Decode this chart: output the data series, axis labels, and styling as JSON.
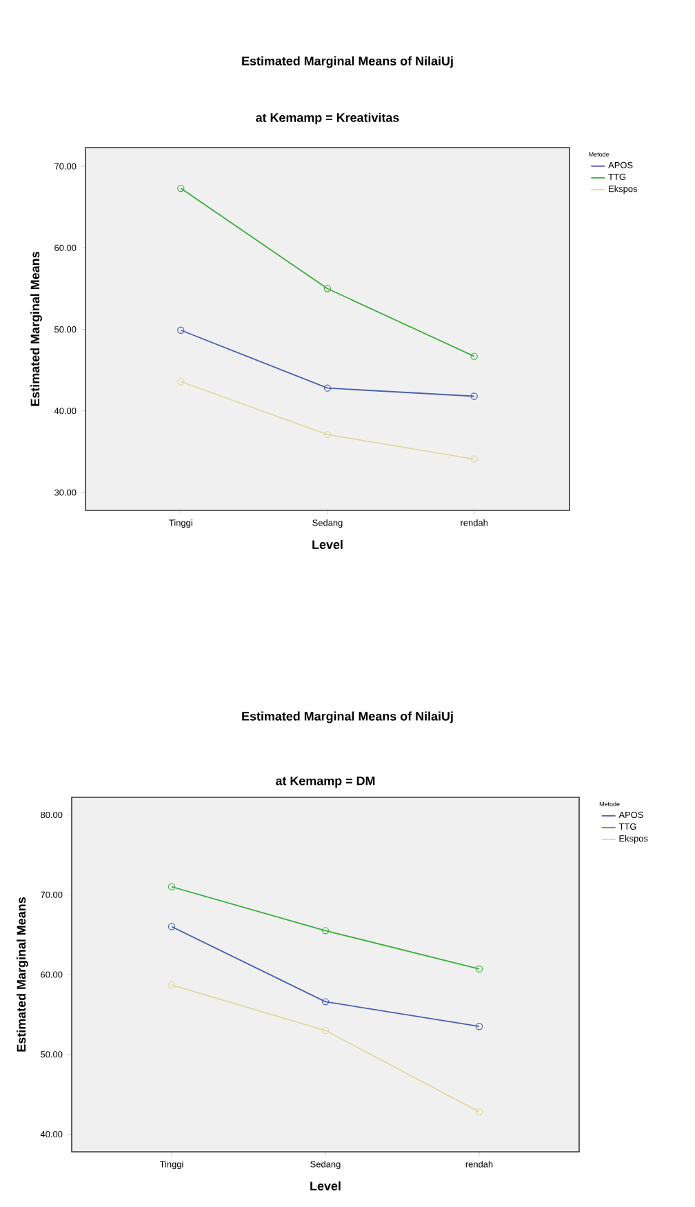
{
  "chart_data": [
    {
      "type": "line",
      "title": "Estimated Marginal Means of NilaiUj",
      "subtitle": "at Kemamp = Kreativitas",
      "xlabel": "Level",
      "ylabel": "Estimated Marginal Means",
      "legend_title": "Metode",
      "categories": [
        "Tinggi",
        "Sedang",
        "rendah"
      ],
      "series": [
        {
          "name": "APOS",
          "color": "#4a5fb0",
          "values": [
            49.9,
            42.8,
            41.8
          ]
        },
        {
          "name": "TTG",
          "color": "#3aad3a",
          "values": [
            67.3,
            55.0,
            46.7
          ]
        },
        {
          "name": "Ekspos",
          "color": "#e0d9a0",
          "values": [
            43.6,
            37.1,
            34.1
          ]
        }
      ],
      "ylim": [
        27.8,
        72.3
      ],
      "yticks": [
        {
          "value": 30,
          "label": "30.00"
        },
        {
          "value": 40,
          "label": "40.00"
        },
        {
          "value": 50,
          "label": "50.00"
        },
        {
          "value": 60,
          "label": "60.00"
        },
        {
          "value": 70,
          "label": "70.00"
        }
      ],
      "marker": "circle",
      "legend": "right",
      "grid": false
    },
    {
      "type": "line",
      "title": "Estimated Marginal Means of NilaiUj",
      "subtitle": "at Kemamp = DM",
      "xlabel": "Level",
      "ylabel": "Estimated Marginal Means",
      "legend_title": "Metode",
      "categories": [
        "Tinggi",
        "Sedang",
        "rendah"
      ],
      "series": [
        {
          "name": "APOS",
          "color": "#4a5fb0",
          "values": [
            66.0,
            56.6,
            53.5
          ]
        },
        {
          "name": "TTG",
          "color": "#3aad3a",
          "values": [
            71.0,
            65.5,
            60.7
          ]
        },
        {
          "name": "Ekspos",
          "color": "#e0d9a0",
          "values": [
            58.7,
            53.0,
            42.8
          ]
        }
      ],
      "ylim": [
        37.8,
        82.2
      ],
      "yticks": [
        {
          "value": 40,
          "label": "40.00"
        },
        {
          "value": 50,
          "label": "50.00"
        },
        {
          "value": 60,
          "label": "60.00"
        },
        {
          "value": 70,
          "label": "70.00"
        },
        {
          "value": 80,
          "label": "80.00"
        }
      ],
      "marker": "circle",
      "legend": "right",
      "grid": false
    }
  ]
}
